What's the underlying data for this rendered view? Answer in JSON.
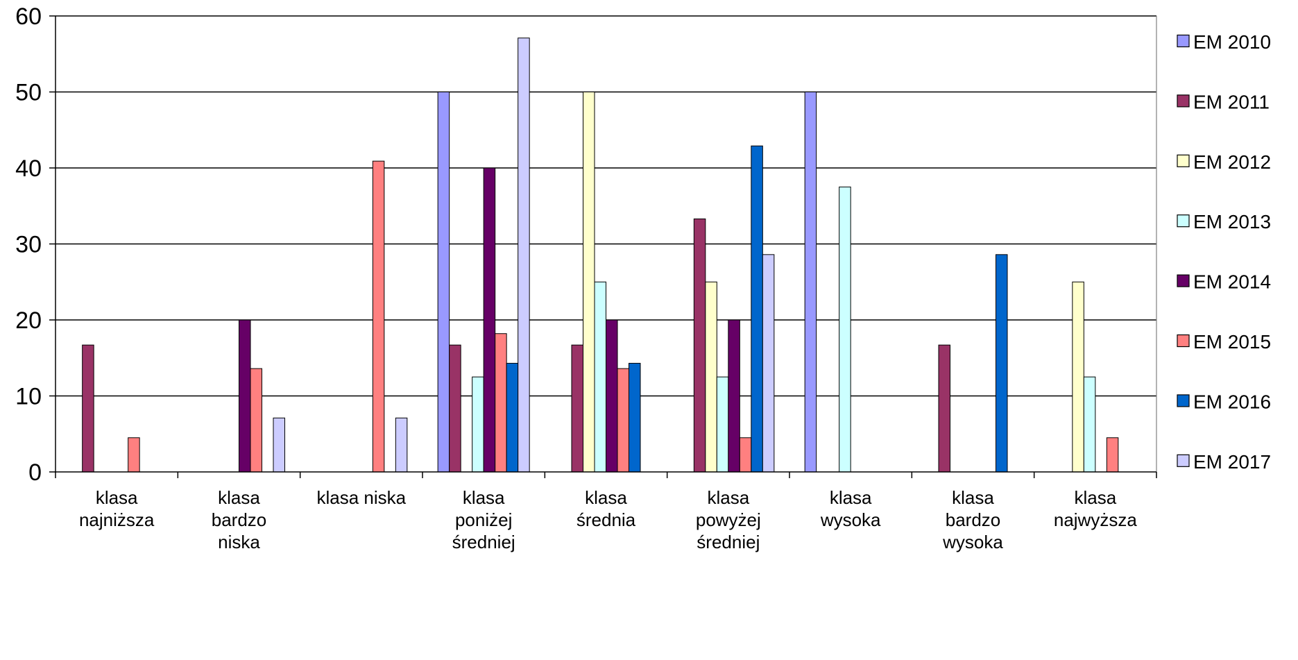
{
  "chart_data": {
    "type": "bar",
    "title": "",
    "xlabel": "",
    "ylabel": "",
    "ylim": [
      0,
      60
    ],
    "yticks": [
      0,
      10,
      20,
      30,
      40,
      50,
      60
    ],
    "grid": true,
    "legend_position": "right",
    "categories": [
      [
        "klasa",
        "najniższa"
      ],
      [
        "klasa",
        "bardzo",
        "niska"
      ],
      [
        "klasa niska"
      ],
      [
        "klasa",
        "poniżej",
        "średniej"
      ],
      [
        "klasa",
        "średnia"
      ],
      [
        "klasa",
        "powyżej",
        "średniej"
      ],
      [
        "klasa",
        "wysoka"
      ],
      [
        "klasa",
        "bardzo",
        "wysoka"
      ],
      [
        "klasa",
        "najwyższa"
      ]
    ],
    "series": [
      {
        "name": "EM 2010",
        "color": "#9999FF",
        "values": [
          0,
          0,
          0,
          50,
          0,
          0,
          50,
          0,
          0
        ]
      },
      {
        "name": "EM 2011",
        "color": "#993366",
        "values": [
          16.7,
          0,
          0,
          16.7,
          16.7,
          33.3,
          0,
          16.7,
          0
        ]
      },
      {
        "name": "EM 2012",
        "color": "#FFFFCC",
        "values": [
          0,
          0,
          0,
          0,
          50,
          25,
          0,
          0,
          25
        ]
      },
      {
        "name": "EM 2013",
        "color": "#CCFFFF",
        "values": [
          0,
          0,
          0,
          12.5,
          25,
          12.5,
          37.5,
          0,
          12.5
        ]
      },
      {
        "name": "EM 2014",
        "color": "#660066",
        "values": [
          0,
          20,
          0,
          40,
          20,
          20,
          0,
          0,
          0
        ]
      },
      {
        "name": "EM 2015",
        "color": "#FF8080",
        "values": [
          4.5,
          13.6,
          40.9,
          18.2,
          13.6,
          4.5,
          0,
          0,
          4.5
        ]
      },
      {
        "name": "EM 2016",
        "color": "#0066CC",
        "values": [
          0,
          0,
          0,
          14.3,
          14.3,
          42.9,
          0,
          28.6,
          0
        ]
      },
      {
        "name": "EM 2017",
        "color": "#CCCCFF",
        "values": [
          0,
          7.1,
          7.1,
          57.1,
          0,
          28.6,
          0,
          0,
          0
        ]
      }
    ]
  }
}
